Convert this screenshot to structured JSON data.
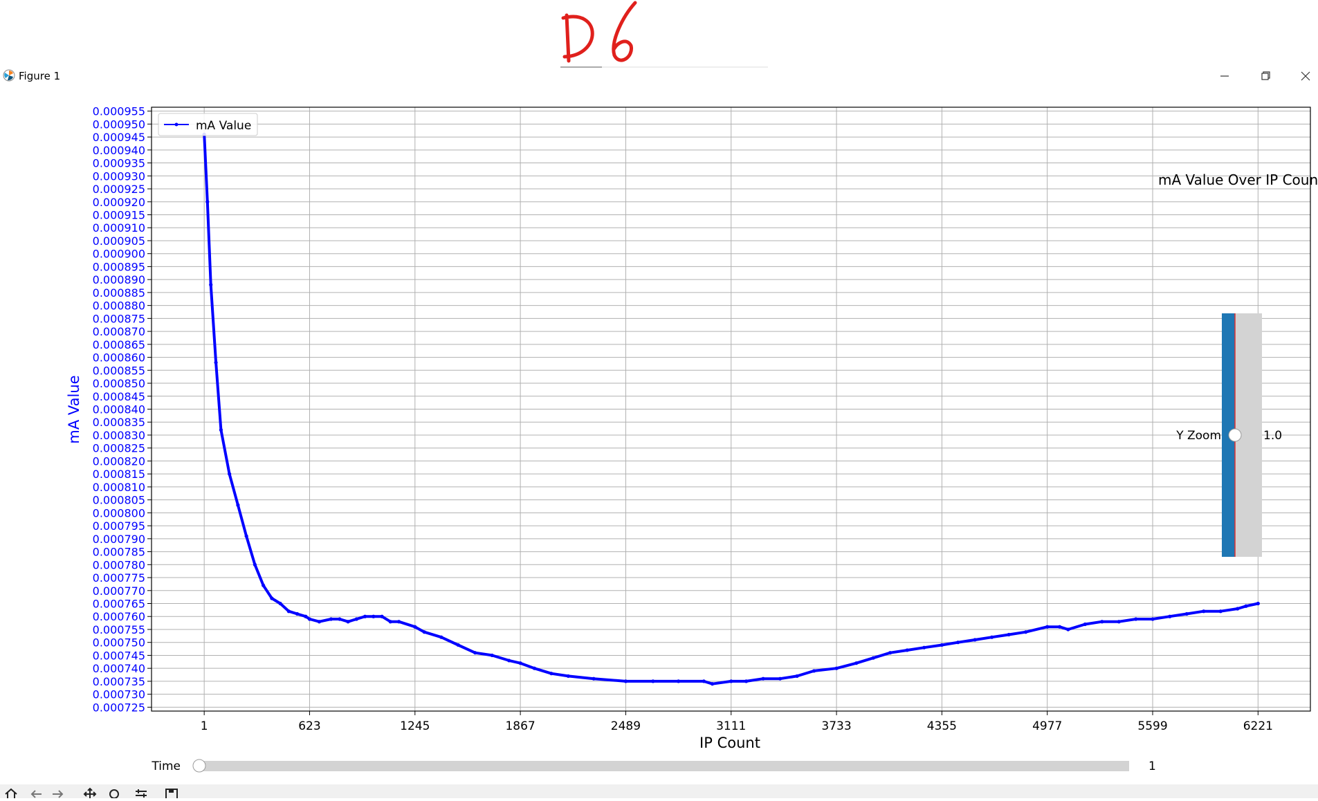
{
  "handwriting": {
    "text": "D 6"
  },
  "window": {
    "title": "Figure 1",
    "icon": "matplotlib-icon",
    "controls": [
      "minimize-icon",
      "maximize-icon",
      "close-icon"
    ]
  },
  "chart_data": {
    "type": "line",
    "title": "mA Value Over IP Count",
    "xlabel": "IP Count",
    "ylabel": "mA Value",
    "xlim": [
      -310,
      6530
    ],
    "ylim": [
      0.0007235,
      0.0009565
    ],
    "x_ticks": [
      1,
      623,
      1245,
      1867,
      2489,
      3111,
      3733,
      4355,
      4977,
      5599,
      6221
    ],
    "y_ticks": [
      0.000725,
      0.00073,
      0.000735,
      0.00074,
      0.000745,
      0.00075,
      0.000755,
      0.00076,
      0.000765,
      0.00077,
      0.000775,
      0.00078,
      0.000785,
      0.00079,
      0.000795,
      0.0008,
      0.000805,
      0.00081,
      0.000815,
      0.00082,
      0.000825,
      0.00083,
      0.000835,
      0.00084,
      0.000845,
      0.00085,
      0.000855,
      0.00086,
      0.000865,
      0.00087,
      0.000875,
      0.00088,
      0.000885,
      0.00089,
      0.000895,
      0.0009,
      0.000905,
      0.00091,
      0.000915,
      0.00092,
      0.000925,
      0.00093,
      0.000935,
      0.00094,
      0.000945,
      0.00095,
      0.000955
    ],
    "y_tick_labels": [
      "0.000725",
      "0.000730",
      "0.000735",
      "0.000740",
      "0.000745",
      "0.000750",
      "0.000755",
      "0.000760",
      "0.000765",
      "0.000770",
      "0.000775",
      "0.000780",
      "0.000785",
      "0.000790",
      "0.000795",
      "0.000800",
      "0.000805",
      "0.000810",
      "0.000815",
      "0.000820",
      "0.000825",
      "0.000830",
      "0.000835",
      "0.000840",
      "0.000845",
      "0.000850",
      "0.000855",
      "0.000860",
      "0.000865",
      "0.000870",
      "0.000875",
      "0.000880",
      "0.000885",
      "0.000890",
      "0.000895",
      "0.000900",
      "0.000905",
      "0.000910",
      "0.000915",
      "0.000920",
      "0.000925",
      "0.000930",
      "0.000935",
      "0.000940",
      "0.000945",
      "0.000950",
      "0.000955"
    ],
    "grid": true,
    "legend": {
      "placement": "upper-left",
      "entries": [
        "mA Value"
      ]
    },
    "series": [
      {
        "name": "mA Value",
        "color": "#0000ff",
        "marker": "dot",
        "x": [
          1,
          20,
          40,
          70,
          100,
          150,
          200,
          250,
          300,
          350,
          400,
          450,
          500,
          550,
          600,
          623,
          680,
          750,
          800,
          850,
          900,
          950,
          1000,
          1050,
          1100,
          1150,
          1245,
          1300,
          1400,
          1500,
          1600,
          1700,
          1800,
          1867,
          1950,
          2050,
          2150,
          2300,
          2489,
          2650,
          2800,
          2950,
          3000,
          3111,
          3200,
          3300,
          3400,
          3500,
          3600,
          3733,
          3850,
          3950,
          4050,
          4150,
          4250,
          4355,
          4450,
          4550,
          4650,
          4750,
          4850,
          4977,
          5050,
          5100,
          5200,
          5300,
          5400,
          5500,
          5599,
          5700,
          5800,
          5900,
          6000,
          6100,
          6150,
          6221
        ],
        "y": [
          0.000946,
          0.00092,
          0.000888,
          0.000858,
          0.000832,
          0.000815,
          0.000803,
          0.000791,
          0.00078,
          0.000772,
          0.000767,
          0.000765,
          0.000762,
          0.000761,
          0.00076,
          0.000759,
          0.000758,
          0.000759,
          0.000759,
          0.000758,
          0.000759,
          0.00076,
          0.00076,
          0.00076,
          0.000758,
          0.000758,
          0.000756,
          0.000754,
          0.000752,
          0.000749,
          0.000746,
          0.000745,
          0.000743,
          0.000742,
          0.00074,
          0.000738,
          0.000737,
          0.000736,
          0.000735,
          0.000735,
          0.000735,
          0.000735,
          0.000734,
          0.000735,
          0.000735,
          0.000736,
          0.000736,
          0.000737,
          0.000739,
          0.00074,
          0.000742,
          0.000744,
          0.000746,
          0.000747,
          0.000748,
          0.000749,
          0.00075,
          0.000751,
          0.000752,
          0.000753,
          0.000754,
          0.000756,
          0.000756,
          0.000755,
          0.000757,
          0.000758,
          0.000758,
          0.000759,
          0.000759,
          0.00076,
          0.000761,
          0.000762,
          0.000762,
          0.000763,
          0.000764,
          0.000765
        ]
      }
    ]
  },
  "y_zoom": {
    "label": "Y Zoom",
    "value_text": "1.0",
    "value": 1.0
  },
  "time_slider": {
    "label": "Time",
    "value_text": "1",
    "value": 1
  },
  "toolbar": {
    "tools": [
      "home-icon",
      "back-icon",
      "forward-icon",
      "pan-icon",
      "zoom-icon",
      "configure-icon",
      "save-icon"
    ]
  }
}
